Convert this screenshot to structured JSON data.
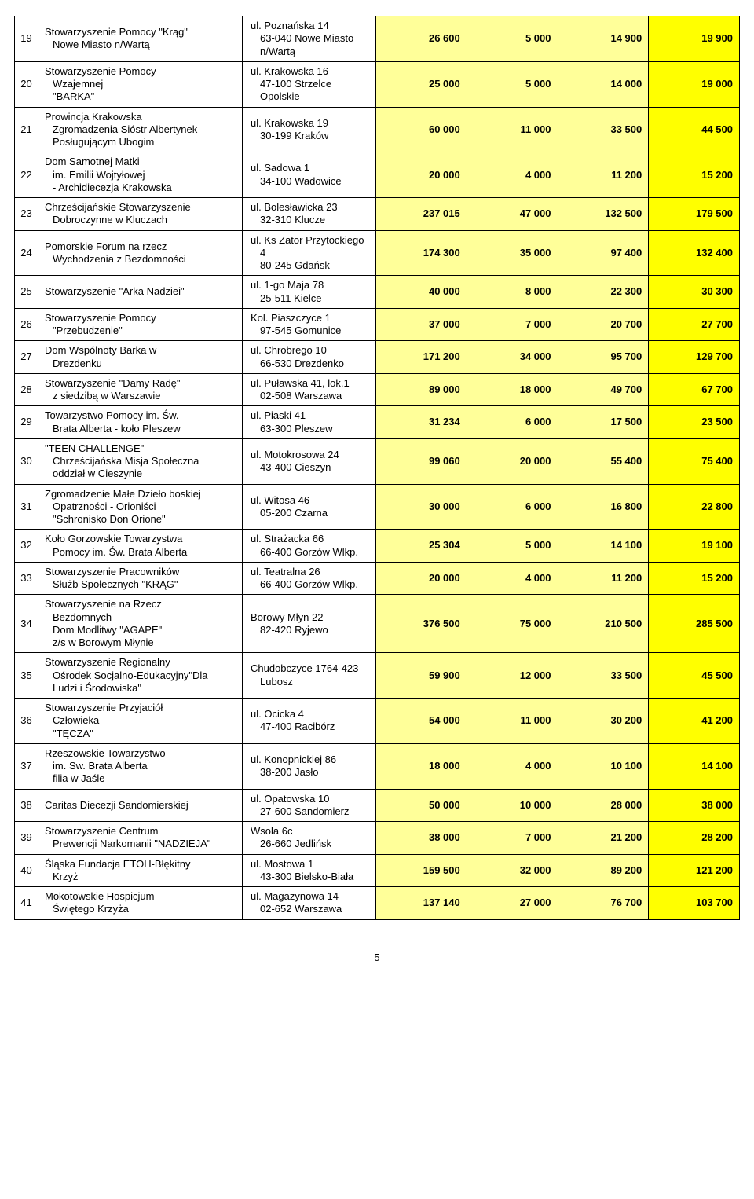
{
  "colors": {
    "highlight_v1": "#ffff99",
    "highlight_v2": "#ffff00",
    "bg": "#ffffff",
    "border": "#000000"
  },
  "page_number": "5",
  "rows": [
    {
      "idx": "19",
      "org": "Stowarzyszenie Pomocy \"Krąg\"\nNowe Miasto n/Wartą",
      "addr": "ul. Poznańska 14\n63-040  Nowe Miasto n/Wartą",
      "v1": "26 600",
      "v2": "5 000",
      "v3": "14 900",
      "v4": "19 900"
    },
    {
      "idx": "20",
      "org": "Stowarzyszenie Pomocy\nWzajemnej\n\"BARKA\"",
      "addr": "ul. Krakowska 16\n47-100 Strzelce Opolskie",
      "v1": "25 000",
      "v2": "5 000",
      "v3": "14 000",
      "v4": "19 000"
    },
    {
      "idx": "21",
      "org": "Prowincja Krakowska\nZgromadzenia Sióstr Albertynek\nPosługującym Ubogim",
      "addr": "ul. Krakowska 19\n30-199 Kraków",
      "v1": "60 000",
      "v2": "11 000",
      "v3": "33 500",
      "v4": "44 500"
    },
    {
      "idx": "22",
      "org": "Dom Samotnej Matki\nim. Emilii Wojtyłowej\n- Archidiecezja Krakowska",
      "addr": "ul. Sadowa 1\n34-100 Wadowice",
      "v1": "20 000",
      "v2": "4 000",
      "v3": "11 200",
      "v4": "15 200"
    },
    {
      "idx": "23",
      "org": "Chrześcijańskie Stowarzyszenie\nDobroczynne w Kluczach",
      "addr": "ul. Bolesławicka 23\n32-310 Klucze",
      "v1": "237 015",
      "v2": "47 000",
      "v3": "132 500",
      "v4": "179 500"
    },
    {
      "idx": "24",
      "org": "Pomorskie Forum na rzecz\nWychodzenia z Bezdomności",
      "addr": "ul. Ks Zator Przytockiego 4\n80-245 Gdańsk",
      "v1": "174 300",
      "v2": "35 000",
      "v3": "97 400",
      "v4": "132 400"
    },
    {
      "idx": "25",
      "org": "Stowarzyszenie \"Arka Nadziei\"",
      "addr": "ul. 1-go Maja 78\n25-511 Kielce",
      "v1": "40 000",
      "v2": "8 000",
      "v3": "22 300",
      "v4": "30 300"
    },
    {
      "idx": "26",
      "org": "Stowarzyszenie Pomocy\n\"Przebudzenie\"",
      "addr": "Kol. Piaszczyce 1\n97-545 Gomunice",
      "v1": "37 000",
      "v2": "7 000",
      "v3": "20 700",
      "v4": "27 700"
    },
    {
      "idx": "27",
      "org": "Dom Wspólnoty Barka w\nDrezdenku",
      "addr": "ul. Chrobrego 10\n66-530 Drezdenko",
      "v1": "171 200",
      "v2": "34 000",
      "v3": "95 700",
      "v4": "129 700"
    },
    {
      "idx": "28",
      "org": "Stowarzyszenie \"Damy Radę\"\nz siedzibą w Warszawie",
      "addr": "ul. Puławska 41, lok.1\n02-508 Warszawa",
      "v1": "89 000",
      "v2": "18 000",
      "v3": "49 700",
      "v4": "67 700"
    },
    {
      "idx": "29",
      "org": "Towarzystwo Pomocy im. Św.\nBrata Alberta - koło Pleszew",
      "addr": "ul. Piaski 41\n63-300 Pleszew",
      "v1": "31 234",
      "v2": "6 000",
      "v3": "17 500",
      "v4": "23 500"
    },
    {
      "idx": "30",
      "org": "\"TEEN CHALLENGE\"\nChrześcijańska Misja Społeczna\noddział w Cieszynie",
      "addr": "ul. Motokrosowa 24\n43-400 Cieszyn",
      "v1": "99 060",
      "v2": "20 000",
      "v3": "55 400",
      "v4": "75 400"
    },
    {
      "idx": "31",
      "org": "Zgromadzenie Małe Dzieło boskiej\nOpatrzności - Orioniści\n\"Schronisko Don Orione\"",
      "addr": "ul. Witosa 46\n05-200  Czarna",
      "v1": "30 000",
      "v2": "6 000",
      "v3": "16 800",
      "v4": "22 800"
    },
    {
      "idx": "32",
      "org": "Koło Gorzowskie Towarzystwa\nPomocy im. Św. Brata Alberta",
      "addr": "ul. Strażacka 66\n66-400 Gorzów Wlkp.",
      "v1": "25 304",
      "v2": "5 000",
      "v3": "14 100",
      "v4": "19 100"
    },
    {
      "idx": "33",
      "org": "Stowarzyszenie Pracowników\nSłużb Społecznych \"KRĄG\"",
      "addr": "ul. Teatralna 26\n66-400 Gorzów Wlkp.",
      "v1": "20 000",
      "v2": "4 000",
      "v3": "11 200",
      "v4": "15 200"
    },
    {
      "idx": "34",
      "org": "Stowarzyszenie na Rzecz\nBezdomnych\nDom Modlitwy \"AGAPE\"\nz/s w Borowym Młynie",
      "addr": "Borowy Młyn 22\n82-420 Ryjewo",
      "v1": "376 500",
      "v2": "75 000",
      "v3": "210 500",
      "v4": "285 500"
    },
    {
      "idx": "35",
      "org": "Stowarzyszenie Regionalny\nOśrodek Socjalno-Edukacyjny\"Dla\nLudzi i Środowiska\"",
      "addr": "Chudobczyce 1764-423 Lubosz",
      "v1": "59 900",
      "v2": "12 000",
      "v3": "33 500",
      "v4": "45 500"
    },
    {
      "idx": "36",
      "org": "Stowarzyszenie Przyjaciół\nCzłowieka\n\"TĘCZA\"",
      "addr": "ul. Ocicka 4\n47-400 Racibórz",
      "v1": "54 000",
      "v2": "11 000",
      "v3": "30 200",
      "v4": "41 200"
    },
    {
      "idx": "37",
      "org": "Rzeszowskie Towarzystwo\nim. Sw. Brata Alberta\nfilia w Jaśle",
      "addr": "ul. Konopnickiej 86\n38-200 Jasło",
      "v1": "18 000",
      "v2": "4 000",
      "v3": "10 100",
      "v4": "14 100"
    },
    {
      "idx": "38",
      "org": "Caritas Diecezji Sandomierskiej",
      "addr": "ul. Opatowska 10\n27-600 Sandomierz",
      "v1": "50 000",
      "v2": "10 000",
      "v3": "28 000",
      "v4": "38 000"
    },
    {
      "idx": "39",
      "org": "Stowarzyszenie Centrum\nPrewencji Narkomanii \"NADZIEJA\"",
      "addr": "Wsola 6c\n26-660 Jedlińsk",
      "v1": "38 000",
      "v2": "7 000",
      "v3": "21 200",
      "v4": "28 200",
      "spacer_before": true
    },
    {
      "idx": "40",
      "org": "Śląska Fundacja ETOH-Błękitny\nKrzyż",
      "addr": "ul. Mostowa 1\n43-300 Bielsko-Biała",
      "v1": "159 500",
      "v2": "32 000",
      "v3": "89 200",
      "v4": "121 200",
      "spacer_before": true
    },
    {
      "idx": "41",
      "org": "Mokotowskie Hospicjum\nŚwiętego Krzyża",
      "addr": "ul. Magazynowa 14\n02-652 Warszawa",
      "v1": "137 140",
      "v2": "27 000",
      "v3": "76 700",
      "v4": "103 700"
    }
  ]
}
